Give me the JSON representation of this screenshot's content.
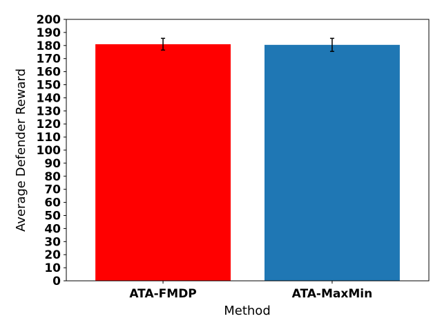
{
  "chart_data": {
    "type": "bar",
    "title": "",
    "xlabel": "Method",
    "ylabel": "Average Defender Reward",
    "categories": [
      "ATA-FMDP",
      "ATA-MaxMin"
    ],
    "values": [
      181,
      180.5
    ],
    "error": [
      4.5,
      5
    ],
    "colors": [
      "#ff0000",
      "#1f77b4"
    ],
    "ylim": [
      0,
      200
    ],
    "ytick_step": 10,
    "grid": false,
    "legend": "none"
  }
}
